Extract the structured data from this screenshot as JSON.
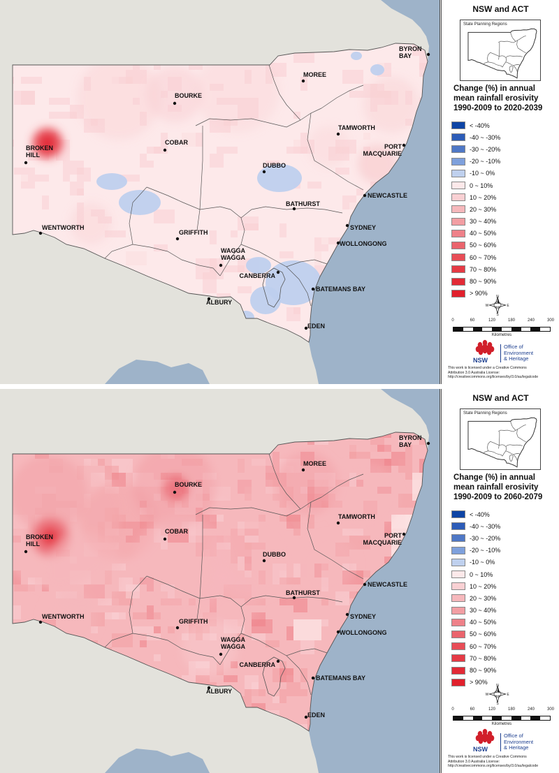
{
  "panels": [
    {
      "legend_title": "NSW and ACT",
      "inset_label": "State Planning Regions",
      "heading_lines": [
        "Change (%) in annual",
        "mean rainfall erosivity",
        "1990-2009 to 2020-2039"
      ],
      "scenario": "near"
    },
    {
      "legend_title": "NSW and ACT",
      "inset_label": "State Planning Regions",
      "heading_lines": [
        "Change (%) in annual",
        "mean rainfall erosivity",
        "1990-2009 to 2060-2079"
      ],
      "scenario": "far"
    }
  ],
  "legend_classes": [
    {
      "label": "< -40%",
      "color": "#0d44a5"
    },
    {
      "label": "-40 ~ -30%",
      "color": "#2c5cb8"
    },
    {
      "label": "-30 ~ -20%",
      "color": "#4f78c6"
    },
    {
      "label": "-20 ~ -10%",
      "color": "#7ea0dc"
    },
    {
      "label": "-10 ~ 0%",
      "color": "#bfd0ee"
    },
    {
      "label": "0 ~ 10%",
      "color": "#fde9ea"
    },
    {
      "label": "10 ~ 20%",
      "color": "#f9d0d3"
    },
    {
      "label": "20 ~ 30%",
      "color": "#f6b8bc"
    },
    {
      "label": "30 ~ 40%",
      "color": "#f29ea3"
    },
    {
      "label": "40 ~ 50%",
      "color": "#ee8189"
    },
    {
      "label": "50 ~ 60%",
      "color": "#ea646d"
    },
    {
      "label": "60 ~ 70%",
      "color": "#e84d57"
    },
    {
      "label": "70 ~ 80%",
      "color": "#e53a45"
    },
    {
      "label": "80 ~ 90%",
      "color": "#e22a36"
    },
    {
      "label": "> 90%",
      "color": "#e0202c"
    }
  ],
  "scale": {
    "ticks": [
      "0",
      "60",
      "120",
      "180",
      "240",
      "300"
    ],
    "unit": "Kilometres"
  },
  "north_labels": {
    "n": "N",
    "s": "S",
    "e": "E",
    "w": "W"
  },
  "logo": {
    "short": "NSW",
    "org_lines": [
      "Office of",
      "Environment",
      "& Heritage"
    ]
  },
  "licence_lines": [
    "This work is licensed under a Creative Commons",
    "Attribution 3.0 Australia License:",
    "http://creativecommons.org/licenses/by/3.0/au/legalcode"
  ],
  "towns": [
    {
      "key": "byron",
      "lines": [
        "BYRON",
        "BAY"
      ]
    },
    {
      "key": "moree",
      "lines": [
        "MOREE"
      ]
    },
    {
      "key": "bourke",
      "lines": [
        "BOURKE"
      ]
    },
    {
      "key": "tamworth",
      "lines": [
        "TAMWORTH"
      ]
    },
    {
      "key": "broken",
      "lines": [
        "BROKEN",
        "HILL"
      ]
    },
    {
      "key": "cobar",
      "lines": [
        "COBAR"
      ]
    },
    {
      "key": "portmac",
      "lines": [
        "PORT",
        "MACQUARIE"
      ]
    },
    {
      "key": "dubbo",
      "lines": [
        "DUBBO"
      ]
    },
    {
      "key": "newcastle",
      "lines": [
        "NEWCASTLE"
      ]
    },
    {
      "key": "bathurst",
      "lines": [
        "BATHURST"
      ]
    },
    {
      "key": "wentworth",
      "lines": [
        "WENTWORTH"
      ]
    },
    {
      "key": "sydney",
      "lines": [
        "SYDNEY"
      ]
    },
    {
      "key": "griffith",
      "lines": [
        "GRIFFITH"
      ]
    },
    {
      "key": "wollongong",
      "lines": [
        "WOLLONGONG"
      ]
    },
    {
      "key": "wagga",
      "lines": [
        "WAGGA",
        "WAGGA"
      ]
    },
    {
      "key": "canberra",
      "lines": [
        "CANBERRA"
      ]
    },
    {
      "key": "batemans",
      "lines": [
        "BATEMANS BAY"
      ]
    },
    {
      "key": "albury",
      "lines": [
        "ALBURY"
      ]
    },
    {
      "key": "eden",
      "lines": [
        "EDEN"
      ]
    }
  ],
  "colors": {
    "ocean": "#9eb3c9",
    "land_outside": "#e3e2dc",
    "boundary": "#555555"
  }
}
